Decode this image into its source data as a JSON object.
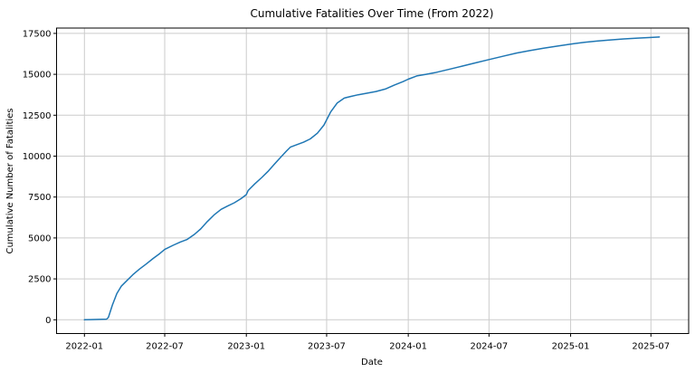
{
  "chart_data": {
    "type": "line",
    "title": "Cumulative Fatalities Over Time (From 2022)",
    "xlabel": "Date",
    "ylabel": "Cumulative Number of Fatalities",
    "grid": true,
    "legend": "none",
    "background_color": "#ffffff",
    "grid_color": "#cccccc",
    "spine_color": "#000000",
    "line_color": "#1f77b4",
    "x_tick_labels": [
      "2022-01",
      "2022-07",
      "2023-01",
      "2023-07",
      "2024-01",
      "2024-07",
      "2025-01",
      "2025-07"
    ],
    "y_tick_labels": [
      0,
      2500,
      5000,
      7500,
      10000,
      12500,
      15000,
      17500
    ],
    "xlim": [
      "2021-10-28",
      "2025-10-02"
    ],
    "ylim": [
      -840,
      17830
    ],
    "series": [
      {
        "name": "Cumulative Fatalities",
        "color": "#1f77b4",
        "points": [
          [
            "2022-01-01",
            0
          ],
          [
            "2022-01-15",
            10
          ],
          [
            "2022-02-01",
            20
          ],
          [
            "2022-02-20",
            40
          ],
          [
            "2022-02-24",
            150
          ],
          [
            "2022-03-05",
            900
          ],
          [
            "2022-03-15",
            1600
          ],
          [
            "2022-03-25",
            2050
          ],
          [
            "2022-04-05",
            2350
          ],
          [
            "2022-04-20",
            2750
          ],
          [
            "2022-05-05",
            3100
          ],
          [
            "2022-05-20",
            3400
          ],
          [
            "2022-06-05",
            3750
          ],
          [
            "2022-06-20",
            4050
          ],
          [
            "2022-07-01",
            4300
          ],
          [
            "2022-07-20",
            4550
          ],
          [
            "2022-08-05",
            4750
          ],
          [
            "2022-08-20",
            4900
          ],
          [
            "2022-09-05",
            5200
          ],
          [
            "2022-09-20",
            5550
          ],
          [
            "2022-10-05",
            6000
          ],
          [
            "2022-10-20",
            6400
          ],
          [
            "2022-11-05",
            6750
          ],
          [
            "2022-11-20",
            6950
          ],
          [
            "2022-12-05",
            7150
          ],
          [
            "2022-12-20",
            7400
          ],
          [
            "2023-01-01",
            7650
          ],
          [
            "2023-01-05",
            7900
          ],
          [
            "2023-01-20",
            8300
          ],
          [
            "2023-02-05",
            8700
          ],
          [
            "2023-02-20",
            9100
          ],
          [
            "2023-03-05",
            9500
          ],
          [
            "2023-03-20",
            9950
          ],
          [
            "2023-04-01",
            10300
          ],
          [
            "2023-04-10",
            10550
          ],
          [
            "2023-04-25",
            10700
          ],
          [
            "2023-05-10",
            10850
          ],
          [
            "2023-05-25",
            11050
          ],
          [
            "2023-06-10",
            11400
          ],
          [
            "2023-06-25",
            11900
          ],
          [
            "2023-07-10",
            12700
          ],
          [
            "2023-07-25",
            13250
          ],
          [
            "2023-08-10",
            13550
          ],
          [
            "2023-08-25",
            13650
          ],
          [
            "2023-09-10",
            13750
          ],
          [
            "2023-10-01",
            13850
          ],
          [
            "2023-10-20",
            13950
          ],
          [
            "2023-11-10",
            14100
          ],
          [
            "2023-12-01",
            14350
          ],
          [
            "2023-12-20",
            14550
          ],
          [
            "2024-01-01",
            14700
          ],
          [
            "2024-01-20",
            14900
          ],
          [
            "2024-02-10",
            15000
          ],
          [
            "2024-03-01",
            15100
          ],
          [
            "2024-04-01",
            15300
          ],
          [
            "2024-05-01",
            15500
          ],
          [
            "2024-06-01",
            15700
          ],
          [
            "2024-07-01",
            15900
          ],
          [
            "2024-08-01",
            16100
          ],
          [
            "2024-09-01",
            16300
          ],
          [
            "2024-10-01",
            16450
          ],
          [
            "2024-11-01",
            16600
          ],
          [
            "2024-12-01",
            16720
          ],
          [
            "2025-01-01",
            16850
          ],
          [
            "2025-02-01",
            16950
          ],
          [
            "2025-03-01",
            17030
          ],
          [
            "2025-04-01",
            17100
          ],
          [
            "2025-05-01",
            17160
          ],
          [
            "2025-06-01",
            17210
          ],
          [
            "2025-07-01",
            17250
          ],
          [
            "2025-07-20",
            17280
          ]
        ]
      }
    ]
  }
}
